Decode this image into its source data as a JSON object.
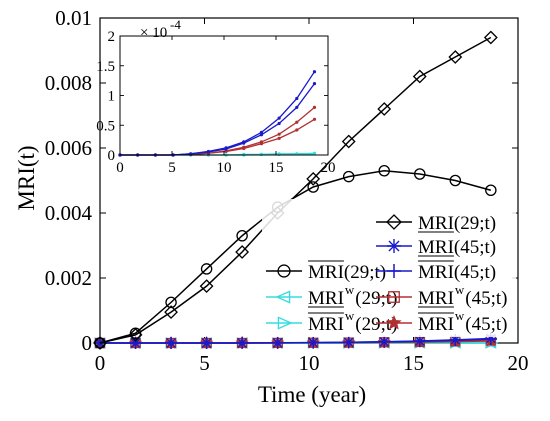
{
  "chart_data": {
    "type": "line",
    "xlabel": "Time (year)",
    "ylabel": "MRI(t)",
    "xlim": [
      0,
      20
    ],
    "ylim": [
      0,
      0.01
    ],
    "x_ticks": [
      "0",
      "5",
      "10",
      "15",
      "20"
    ],
    "y_ticks": [
      "0",
      "0.002",
      "0.004",
      "0.006",
      "0.008",
      "0.01"
    ],
    "grid": false,
    "legend_position": "bottom-right",
    "x": [
      0,
      1.7,
      3.4,
      5.1,
      6.8,
      8.5,
      10.2,
      11.9,
      13.6,
      15.3,
      17.0,
      18.7
    ],
    "series": [
      {
        "name": "MRI(29;t)",
        "bar": "under",
        "sup": "",
        "color": "#000000",
        "marker": "diamond",
        "values": [
          0,
          0.00025,
          0.00095,
          0.00175,
          0.0028,
          0.004,
          0.00505,
          0.0062,
          0.0072,
          0.0082,
          0.0088,
          0.0094
        ]
      },
      {
        "name": "MRI(29;t)",
        "bar": "over",
        "sup": "",
        "color": "#000000",
        "marker": "circle",
        "values": [
          0,
          0.0003,
          0.00125,
          0.00228,
          0.0033,
          0.00418,
          0.0048,
          0.00512,
          0.0053,
          0.0052,
          0.005,
          0.0047
        ]
      },
      {
        "name": "MRI(45;t)",
        "bar": "under",
        "sup": "",
        "color": "#1a1acc",
        "marker": "asterisk",
        "values": [
          0,
          0,
          0,
          0,
          2e-06,
          6e-06,
          1.2e-05,
          2.2e-05,
          3.8e-05,
          6.2e-05,
          9.5e-05,
          0.00014
        ]
      },
      {
        "name": "MRI(45;t)",
        "bar": "over",
        "sup": "",
        "color": "#1a1acc",
        "marker": "plus",
        "values": [
          0,
          0,
          0,
          0,
          2e-06,
          5e-06,
          1e-05,
          2e-05,
          3.4e-05,
          5.3e-05,
          8e-05,
          0.00012
        ]
      },
      {
        "name": "MRI(29;t)",
        "bar": "under",
        "sup": "w",
        "color": "#33dddd",
        "marker": "triangle-left",
        "values": [
          0,
          0,
          0,
          0,
          0,
          0,
          0,
          1e-06,
          1e-06,
          2e-06,
          2e-06,
          3e-06
        ]
      },
      {
        "name": "MRI(29;t)",
        "bar": "over",
        "sup": "w",
        "color": "#33dddd",
        "marker": "triangle-right",
        "values": [
          0,
          0,
          0,
          0,
          0,
          0,
          0,
          0,
          1e-06,
          1e-06,
          2e-06,
          2e-06
        ]
      },
      {
        "name": "MRI(45;t)",
        "bar": "under",
        "sup": "w",
        "color": "#b03030",
        "marker": "square",
        "values": [
          0,
          0,
          0,
          0,
          1e-06,
          3e-06,
          7e-06,
          1.3e-05,
          2.2e-05,
          3.5e-05,
          5.5e-05,
          8e-05
        ]
      },
      {
        "name": "MRI(45;t)",
        "bar": "over",
        "sup": "w",
        "color": "#b03030",
        "marker": "star",
        "values": [
          0,
          0,
          0,
          0,
          1e-06,
          3e-06,
          6e-06,
          1.1e-05,
          1.9e-05,
          2.8e-05,
          4.2e-05,
          6e-05
        ]
      }
    ],
    "inset": {
      "xlim": [
        0,
        20
      ],
      "ylim": [
        0,
        0.0002
      ],
      "x_ticks": [
        "0",
        "5",
        "10",
        "15",
        "20"
      ],
      "y_ticks": [
        "0",
        "0.5",
        "1",
        "1.5",
        "2"
      ],
      "exponent_base": "× 10",
      "exponent_power": "-4"
    }
  }
}
